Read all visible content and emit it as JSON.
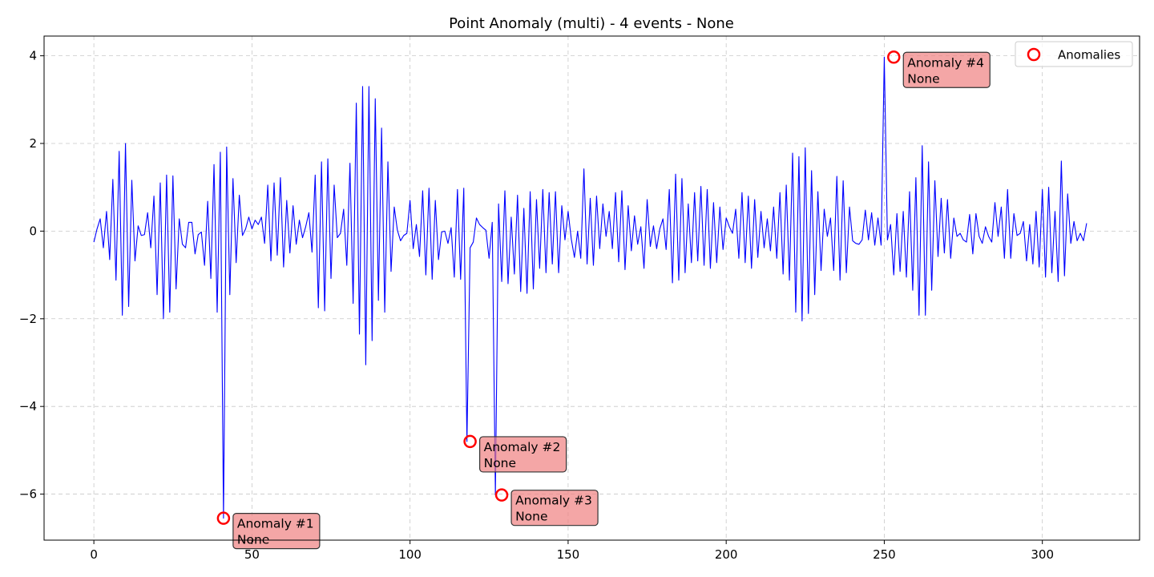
{
  "chart_data": {
    "type": "line",
    "title": "Point Anomaly (multi) - 4 events - None",
    "xlabel": "",
    "ylabel": "",
    "xlim": [
      -15.75,
      330.75
    ],
    "ylim": [
      -7.05,
      4.45
    ],
    "xticks": [
      0,
      50,
      100,
      150,
      200,
      250,
      300
    ],
    "yticks": [
      -6,
      -4,
      -2,
      0,
      2,
      4
    ],
    "ytick_labels": [
      "−6",
      "−4",
      "−2",
      "0",
      "2",
      "4"
    ],
    "grid": true,
    "legend_position": "top-right",
    "series": [
      {
        "color": "#0000ff",
        "values": [
          -0.25,
          0.05,
          0.28,
          -0.38,
          0.45,
          -0.65,
          1.18,
          -1.12,
          1.82,
          -1.92,
          2.0,
          -1.72,
          1.16,
          -0.68,
          0.12,
          -0.1,
          -0.08,
          0.42,
          -0.38,
          0.8,
          -1.45,
          1.1,
          -2.0,
          1.28,
          -1.85,
          1.26,
          -1.32,
          0.28,
          -0.3,
          -0.38,
          0.2,
          0.2,
          -0.52,
          -0.08,
          -0.02,
          -0.78,
          0.68,
          -1.08,
          1.52,
          -1.85,
          1.8,
          -6.55,
          1.92,
          -1.45,
          1.2,
          -0.72,
          0.82,
          -0.1,
          0.05,
          0.32,
          0.05,
          0.25,
          0.15,
          0.32,
          -0.28,
          1.05,
          -0.68,
          1.1,
          -0.55,
          1.22,
          -0.82,
          0.7,
          -0.5,
          0.58,
          -0.3,
          0.25,
          -0.15,
          0.1,
          0.42,
          -0.48,
          1.28,
          -1.75,
          1.58,
          -1.82,
          1.65,
          -1.08,
          1.05,
          -0.15,
          -0.05,
          0.5,
          -0.78,
          1.55,
          -1.65,
          2.92,
          -2.35,
          3.3,
          -3.05,
          3.3,
          -2.5,
          3.02,
          -1.58,
          2.35,
          -1.85,
          1.58,
          -0.92,
          0.55,
          0.02,
          -0.22,
          -0.1,
          -0.05,
          0.7,
          -0.4,
          0.15,
          -0.58,
          0.92,
          -1.0,
          0.98,
          -1.1,
          0.7,
          -0.65,
          -0.02,
          0.0,
          -0.28,
          0.08,
          -1.05,
          0.95,
          -1.1,
          0.98,
          -4.8,
          -0.38,
          -0.25,
          0.3,
          0.15,
          0.08,
          0.02,
          -0.62,
          0.2,
          -6.02,
          0.62,
          -1.15,
          0.92,
          -1.2,
          0.32,
          -0.98,
          0.82,
          -1.38,
          0.52,
          -1.42,
          0.9,
          -1.32,
          0.72,
          -0.85,
          0.95,
          -0.95,
          0.88,
          -0.75,
          0.9,
          -0.95,
          0.58,
          -0.2,
          0.45,
          -0.18,
          -0.6,
          0.0,
          -0.62,
          1.42,
          -0.75,
          0.75,
          -0.78,
          0.8,
          -0.4,
          0.62,
          -0.12,
          0.45,
          -0.4,
          0.88,
          -0.7,
          0.92,
          -0.88,
          0.58,
          -0.45,
          0.35,
          -0.3,
          0.1,
          -0.85,
          0.72,
          -0.35,
          0.12,
          -0.4,
          0.05,
          0.28,
          -0.42,
          0.95,
          -1.18,
          1.3,
          -1.12,
          1.2,
          -0.95,
          0.62,
          -0.72,
          0.88,
          -0.68,
          1.02,
          -0.78,
          0.95,
          -0.85,
          0.65,
          -0.72,
          0.55,
          -0.42,
          0.3,
          0.1,
          -0.05,
          0.5,
          -0.62,
          0.88,
          -0.72,
          0.8,
          -0.85,
          0.72,
          -0.6,
          0.45,
          -0.38,
          0.28,
          -0.45,
          0.55,
          -0.62,
          0.88,
          -0.98,
          1.05,
          -1.12,
          1.78,
          -1.85,
          1.7,
          -2.05,
          1.9,
          -1.88,
          1.38,
          -1.45,
          0.9,
          -0.9,
          0.5,
          -0.12,
          0.3,
          -0.9,
          1.25,
          -1.12,
          1.15,
          -0.95,
          0.55,
          -0.22,
          -0.28,
          -0.3,
          -0.2,
          0.48,
          -0.2,
          0.42,
          -0.32,
          0.3,
          -0.32,
          3.97,
          -0.2,
          0.15,
          -1.0,
          0.4,
          -0.92,
          0.45,
          -1.05,
          0.9,
          -1.35,
          1.22,
          -1.92,
          1.95,
          -1.92,
          1.58,
          -1.35,
          1.15,
          -0.58,
          0.75,
          -0.5,
          0.72,
          -0.62,
          0.3,
          -0.12,
          -0.05,
          -0.2,
          -0.25,
          0.38,
          -0.52,
          0.4,
          -0.12,
          -0.28,
          0.1,
          -0.12,
          -0.25,
          0.65,
          -0.12,
          0.55,
          -0.62,
          0.95,
          -0.62,
          0.4,
          -0.1,
          -0.05,
          0.22,
          -0.68,
          0.15,
          -0.75,
          0.45,
          -0.82,
          0.95,
          -1.05,
          1.0,
          -0.95,
          0.45,
          -1.15,
          1.6,
          -1.02,
          0.85,
          -0.28,
          0.22,
          -0.22,
          -0.05,
          -0.22,
          0.18
        ]
      }
    ],
    "anomalies": {
      "legend_label": "Anomalies",
      "color": "#ff0000",
      "points": [
        {
          "x": 41,
          "y": -6.55,
          "label": "Anomaly #1",
          "sublabel": "None"
        },
        {
          "x": 119,
          "y": -4.8,
          "label": "Anomaly #2",
          "sublabel": "None"
        },
        {
          "x": 129,
          "y": -6.02,
          "label": "Anomaly #3",
          "sublabel": "None"
        },
        {
          "x": 253,
          "y": 3.97,
          "label": "Anomaly #4",
          "sublabel": "None"
        }
      ]
    },
    "annotation_box_color": "#f08080"
  }
}
